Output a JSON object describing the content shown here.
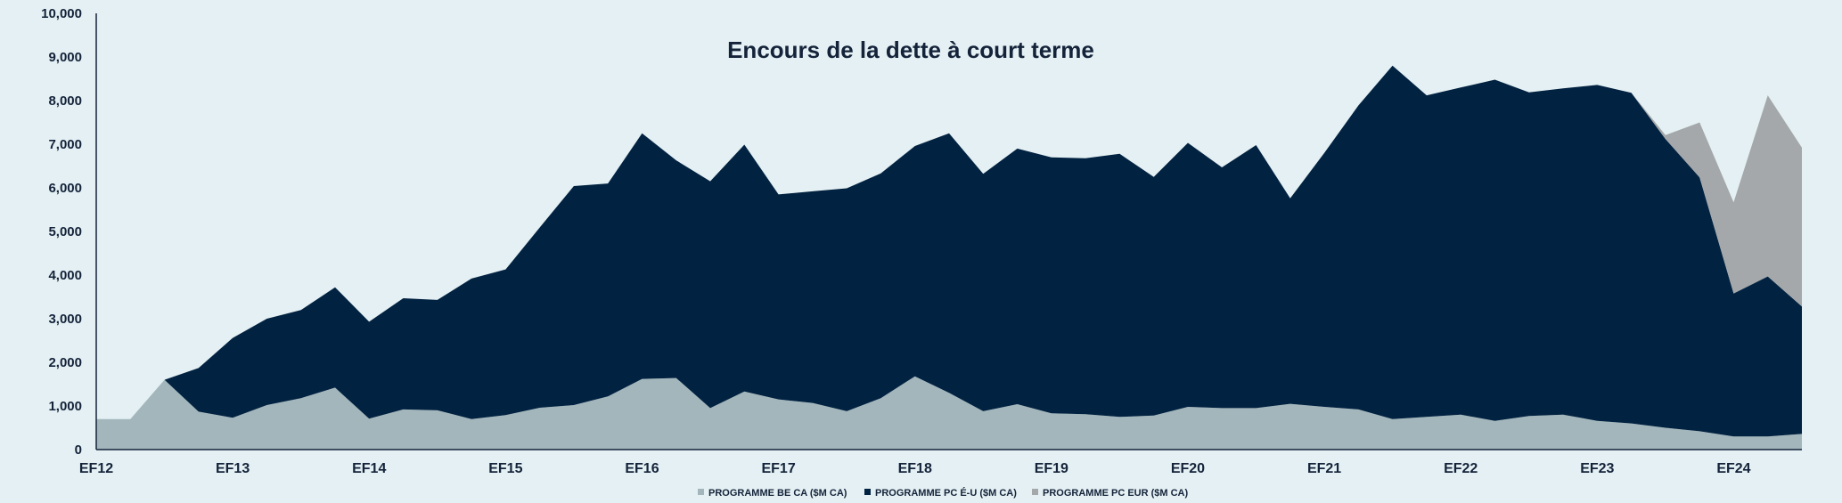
{
  "chart_data": {
    "type": "area",
    "stacked": true,
    "title": "Encours de la dette à court terme",
    "xlabel": "",
    "ylabel": "",
    "ylim": [
      0,
      10000
    ],
    "yticks": [
      0,
      1000,
      2000,
      3000,
      4000,
      5000,
      6000,
      7000,
      8000,
      9000,
      10000
    ],
    "ytick_labels": [
      "0",
      "1,000",
      "2,000",
      "3,000",
      "4,000",
      "5,000",
      "6,000",
      "7,000",
      "8,000",
      "9,000",
      "10,000"
    ],
    "x_tick_labels": [
      "EF12",
      "EF13",
      "EF14",
      "EF15",
      "EF16",
      "EF17",
      "EF18",
      "EF19",
      "EF20",
      "EF21",
      "EF22",
      "EF23",
      "EF24"
    ],
    "x_tick_every": 4,
    "grid": false,
    "legend_position": "bottom-center",
    "series": [
      {
        "name": "PROGRAMME BE CA ($M CA)",
        "color": "#a3b6bb",
        "values": [
          700,
          700,
          1600,
          870,
          730,
          1020,
          1180,
          1420,
          710,
          920,
          900,
          700,
          790,
          960,
          1020,
          1220,
          1620,
          1640,
          950,
          1330,
          1150,
          1070,
          880,
          1180,
          1680,
          1300,
          880,
          1040,
          830,
          810,
          750,
          780,
          980,
          950,
          950,
          1050,
          980,
          920,
          700,
          750,
          800,
          660,
          770,
          800,
          660,
          600,
          500,
          420,
          300,
          300,
          360
        ]
      },
      {
        "name": "PROGRAMME PC É-U ($M CA)",
        "color": "#022241",
        "values": [
          0,
          0,
          0,
          1000,
          1830,
          1980,
          2020,
          2300,
          2220,
          2550,
          2530,
          3220,
          3340,
          4130,
          5020,
          4880,
          5630,
          4990,
          5200,
          5660,
          4700,
          4850,
          5110,
          5150,
          5280,
          5950,
          5440,
          5860,
          5870,
          5870,
          6030,
          5470,
          6050,
          5520,
          6030,
          4710,
          5820,
          6970,
          8100,
          7370,
          7500,
          7820,
          7420,
          7480,
          7700,
          7580,
          6620,
          5820,
          3280,
          3670,
          2920
        ]
      },
      {
        "name": "PROGRAMME PC EUR ($M CA)",
        "color": "#a4a8aa",
        "values": [
          0,
          0,
          0,
          0,
          0,
          0,
          0,
          0,
          0,
          0,
          0,
          0,
          0,
          0,
          0,
          0,
          0,
          0,
          0,
          0,
          0,
          0,
          0,
          0,
          0,
          0,
          0,
          0,
          0,
          0,
          0,
          0,
          0,
          0,
          0,
          0,
          0,
          0,
          0,
          0,
          0,
          0,
          0,
          0,
          0,
          0,
          90,
          1260,
          2090,
          4150,
          3640
        ]
      }
    ]
  }
}
